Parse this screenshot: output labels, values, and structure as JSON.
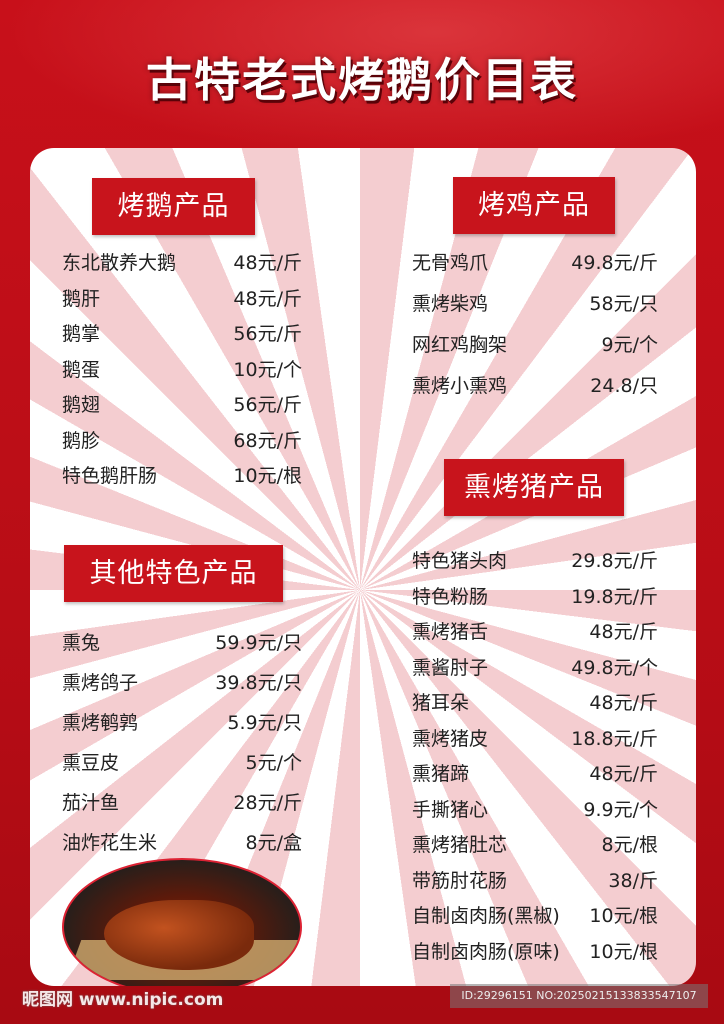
{
  "title": "古特老式烤鹅价目表",
  "sections": {
    "goose": {
      "title": "烤鹅产品",
      "items": [
        {
          "name": "东北散养大鹅",
          "price": "48元/斤"
        },
        {
          "name": "鹅肝",
          "price": "48元/斤"
        },
        {
          "name": "鹅掌",
          "price": "56元/斤"
        },
        {
          "name": "鹅蛋",
          "price": "10元/个"
        },
        {
          "name": "鹅翅",
          "price": "56元/斤"
        },
        {
          "name": "鹅胗",
          "price": "68元/斤"
        },
        {
          "name": "特色鹅肝肠",
          "price": "10元/根"
        }
      ]
    },
    "other": {
      "title": "其他特色产品",
      "items": [
        {
          "name": "熏兔",
          "price": "59.9元/只"
        },
        {
          "name": "熏烤鸽子",
          "price": "39.8元/只"
        },
        {
          "name": "熏烤鹌鹑",
          "price": "5.9元/只"
        },
        {
          "name": "熏豆皮",
          "price": "5元/个"
        },
        {
          "name": "茄汁鱼",
          "price": "28元/斤"
        },
        {
          "name": "油炸花生米",
          "price": "8元/盒"
        }
      ]
    },
    "chicken": {
      "title": "烤鸡产品",
      "items": [
        {
          "name": "无骨鸡爪",
          "price": "49.8元/斤"
        },
        {
          "name": "熏烤柴鸡",
          "price": "58元/只"
        },
        {
          "name": "网红鸡胸架",
          "price": "9元/个"
        },
        {
          "name": "熏烤小熏鸡",
          "price": "24.8/只"
        }
      ]
    },
    "pork": {
      "title": "熏烤猪产品",
      "items": [
        {
          "name": "特色猪头肉",
          "price": "29.8元/斤"
        },
        {
          "name": "特色粉肠",
          "price": "19.8元/斤"
        },
        {
          "name": "熏烤猪舌",
          "price": "48元/斤"
        },
        {
          "name": "熏酱肘子",
          "price": "49.8元/个"
        },
        {
          "name": "猪耳朵",
          "price": "48元/斤"
        },
        {
          "name": "熏烤猪皮",
          "price": "18.8元/斤"
        },
        {
          "name": "熏猪蹄",
          "price": "48元/斤"
        },
        {
          "name": "手撕猪心",
          "price": "9.9元/个"
        },
        {
          "name": "熏烤猪肚芯",
          "price": "8元/根"
        },
        {
          "name": "带筋肘花肠",
          "price": "38/斤"
        },
        {
          "name": "自制卤肉肠(黑椒)",
          "price": "10元/根"
        },
        {
          "name": "自制卤肉肠(原味)",
          "price": "10元/根"
        }
      ]
    }
  },
  "watermark": "昵图网 www.nipic.com",
  "id_bar": "ID:29296151 NO:20250215133833547107",
  "colors": {
    "background": "#c8101a",
    "header": "#c8141c",
    "ray": "#f4cdd0"
  }
}
